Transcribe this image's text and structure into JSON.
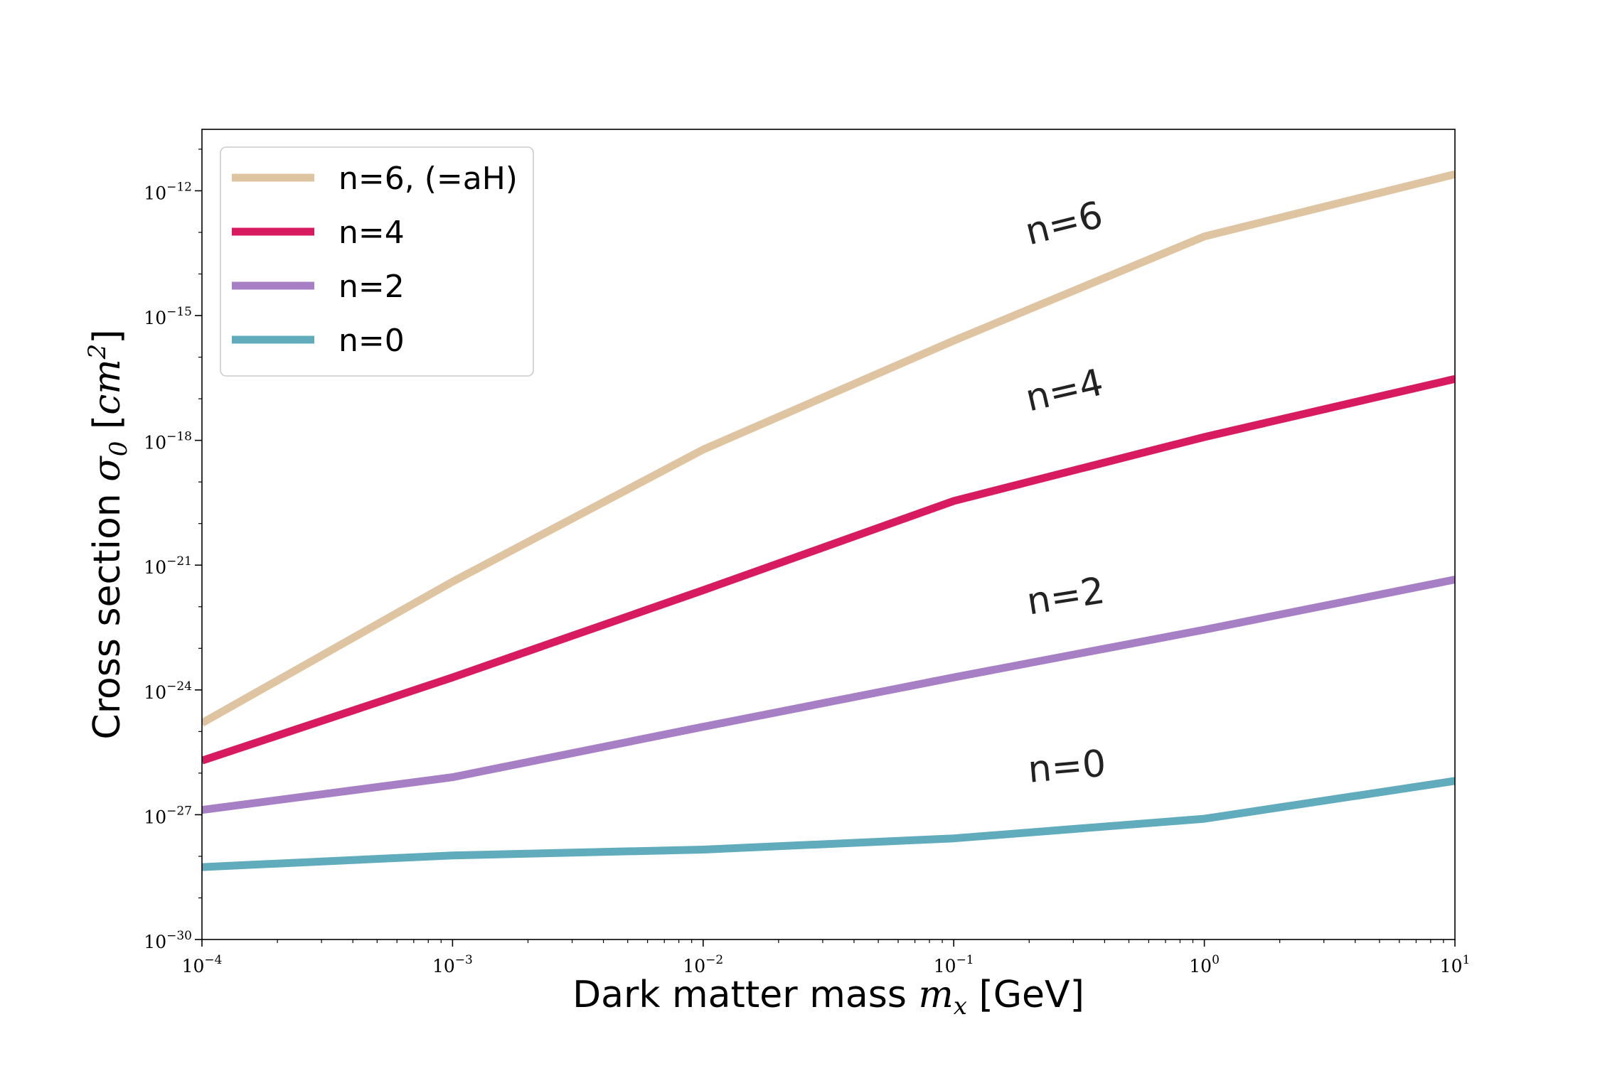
{
  "chart_data": {
    "type": "line",
    "xscale": "log",
    "yscale": "log",
    "xlim": [
      0.0001,
      10
    ],
    "ylim": [
      1e-30,
      3e-11
    ],
    "grid": false,
    "legend_position": "upper-left",
    "xlabel": {
      "prefix": "Dark matter mass ",
      "symbol": "m",
      "subscript": "x",
      "suffix": " [GeV]"
    },
    "ylabel": {
      "prefix": "Cross section ",
      "symbol": "σ",
      "subscript": "0",
      "unit_open": " [",
      "unit": "cm",
      "unit_exp": "2",
      "unit_close": "]"
    },
    "x_ticks": [
      {
        "value": 0.0001,
        "base": "10",
        "exp": "−4"
      },
      {
        "value": 0.001,
        "base": "10",
        "exp": "−3"
      },
      {
        "value": 0.01,
        "base": "10",
        "exp": "−2"
      },
      {
        "value": 0.1,
        "base": "10",
        "exp": "−1"
      },
      {
        "value": 1,
        "base": "10",
        "exp": "0"
      },
      {
        "value": 10,
        "base": "10",
        "exp": "1"
      }
    ],
    "y_ticks": [
      {
        "value": 1e-12,
        "base": "10",
        "exp": "−12"
      },
      {
        "value": 1e-15,
        "base": "10",
        "exp": "−15"
      },
      {
        "value": 1e-18,
        "base": "10",
        "exp": "−18"
      },
      {
        "value": 1e-21,
        "base": "10",
        "exp": "−21"
      },
      {
        "value": 1e-24,
        "base": "10",
        "exp": "−24"
      },
      {
        "value": 1e-27,
        "base": "10",
        "exp": "−27"
      },
      {
        "value": 1e-30,
        "base": "10",
        "exp": "−30"
      }
    ],
    "series": [
      {
        "name": "n=6, (=aH)",
        "annotation": "n=6",
        "color": "#dfc4a2",
        "x": [
          0.0001,
          0.001,
          0.01,
          0.1,
          1,
          10
        ],
        "y": [
          1.6e-25,
          4e-22,
          6e-19,
          2.5e-16,
          8e-14,
          2.5e-12
        ]
      },
      {
        "name": "n=4",
        "annotation": "n=4",
        "color": "#d81b60",
        "x": [
          0.0001,
          0.001,
          0.01,
          0.1,
          1,
          10
        ],
        "y": [
          2e-26,
          2e-24,
          2.5e-22,
          3.5e-20,
          1.2e-18,
          3e-17
        ]
      },
      {
        "name": "n=2",
        "annotation": "n=2",
        "color": "#a67fc4",
        "x": [
          0.0001,
          0.001,
          0.01,
          0.1,
          1,
          10
        ],
        "y": [
          1.3e-27,
          8e-27,
          1.3e-25,
          2e-24,
          2.8e-23,
          4.5e-22
        ]
      },
      {
        "name": "n=0",
        "annotation": "n=0",
        "color": "#60acbc",
        "x": [
          0.0001,
          0.001,
          0.01,
          0.1,
          1,
          10
        ],
        "y": [
          5.5e-29,
          1.05e-28,
          1.45e-28,
          2.7e-28,
          8e-28,
          6.5e-27
        ]
      }
    ]
  }
}
